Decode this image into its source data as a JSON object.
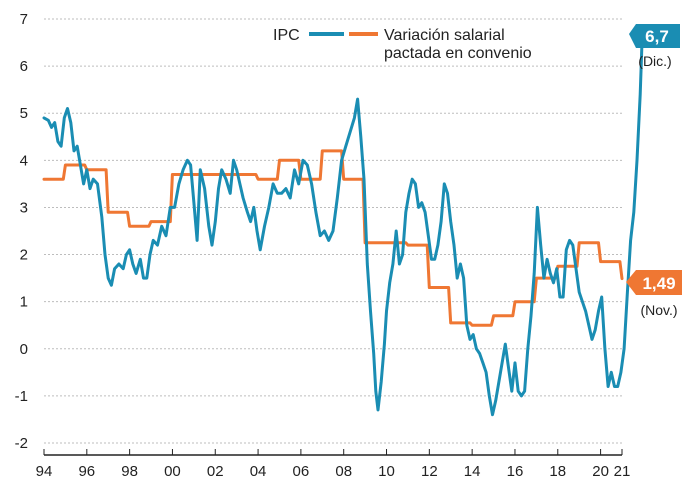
{
  "chart_data": {
    "type": "line",
    "title": "",
    "xlabel": "",
    "ylabel": "",
    "xlim": [
      1994,
      2021
    ],
    "ylim": [
      -2,
      7
    ],
    "grid": true,
    "x_ticks": [
      {
        "value": 1994,
        "label": "94"
      },
      {
        "value": 1996,
        "label": "96"
      },
      {
        "value": 1998,
        "label": "98"
      },
      {
        "value": 2000,
        "label": "00"
      },
      {
        "value": 2002,
        "label": "02"
      },
      {
        "value": 2004,
        "label": "04"
      },
      {
        "value": 2006,
        "label": "06"
      },
      {
        "value": 2008,
        "label": "08"
      },
      {
        "value": 2010,
        "label": "10"
      },
      {
        "value": 2012,
        "label": "12"
      },
      {
        "value": 2014,
        "label": "14"
      },
      {
        "value": 2016,
        "label": "16"
      },
      {
        "value": 2018,
        "label": "18"
      },
      {
        "value": 2020,
        "label": "20"
      },
      {
        "value": 2021,
        "label": "21"
      }
    ],
    "y_ticks": [
      {
        "value": -2,
        "label": "-2"
      },
      {
        "value": -1,
        "label": "-1"
      },
      {
        "value": 0,
        "label": "0"
      },
      {
        "value": 1,
        "label": "1"
      },
      {
        "value": 2,
        "label": "2"
      },
      {
        "value": 3,
        "label": "3"
      },
      {
        "value": 4,
        "label": "4"
      },
      {
        "value": 5,
        "label": "5"
      },
      {
        "value": 6,
        "label": "6"
      },
      {
        "value": 7,
        "label": "7"
      }
    ],
    "legend": {
      "position": "top-right"
    },
    "series": [
      {
        "name": "IPC",
        "color": "#1a8db3",
        "points": [
          [
            1994.0,
            4.9
          ],
          [
            1994.2,
            4.85
          ],
          [
            1994.35,
            4.7
          ],
          [
            1994.5,
            4.8
          ],
          [
            1994.65,
            4.4
          ],
          [
            1994.8,
            4.3
          ],
          [
            1994.95,
            4.9
          ],
          [
            1995.1,
            5.1
          ],
          [
            1995.25,
            4.8
          ],
          [
            1995.4,
            4.2
          ],
          [
            1995.55,
            4.3
          ],
          [
            1995.7,
            3.9
          ],
          [
            1995.85,
            3.5
          ],
          [
            1996.0,
            3.8
          ],
          [
            1996.15,
            3.4
          ],
          [
            1996.3,
            3.6
          ],
          [
            1996.5,
            3.5
          ],
          [
            1996.7,
            2.8
          ],
          [
            1996.85,
            2.0
          ],
          [
            1997.0,
            1.5
          ],
          [
            1997.15,
            1.35
          ],
          [
            1997.3,
            1.7
          ],
          [
            1997.5,
            1.8
          ],
          [
            1997.7,
            1.7
          ],
          [
            1997.85,
            2.0
          ],
          [
            1998.0,
            2.1
          ],
          [
            1998.15,
            1.8
          ],
          [
            1998.3,
            1.6
          ],
          [
            1998.5,
            1.9
          ],
          [
            1998.65,
            1.5
          ],
          [
            1998.8,
            1.5
          ],
          [
            1998.95,
            2.0
          ],
          [
            1999.1,
            2.3
          ],
          [
            1999.3,
            2.2
          ],
          [
            1999.5,
            2.6
          ],
          [
            1999.7,
            2.4
          ],
          [
            1999.9,
            3.0
          ],
          [
            2000.1,
            3.0
          ],
          [
            2000.3,
            3.5
          ],
          [
            2000.5,
            3.8
          ],
          [
            2000.7,
            4.0
          ],
          [
            2000.85,
            3.9
          ],
          [
            2001.0,
            3.1
          ],
          [
            2001.15,
            2.3
          ],
          [
            2001.3,
            3.8
          ],
          [
            2001.5,
            3.4
          ],
          [
            2001.7,
            2.6
          ],
          [
            2001.85,
            2.2
          ],
          [
            2002.0,
            2.7
          ],
          [
            2002.15,
            3.4
          ],
          [
            2002.3,
            3.8
          ],
          [
            2002.5,
            3.6
          ],
          [
            2002.7,
            3.3
          ],
          [
            2002.85,
            4.0
          ],
          [
            2003.0,
            3.8
          ],
          [
            2003.15,
            3.5
          ],
          [
            2003.3,
            3.2
          ],
          [
            2003.5,
            2.9
          ],
          [
            2003.65,
            2.7
          ],
          [
            2003.8,
            3.0
          ],
          [
            2003.95,
            2.5
          ],
          [
            2004.1,
            2.1
          ],
          [
            2004.3,
            2.6
          ],
          [
            2004.5,
            3.0
          ],
          [
            2004.7,
            3.5
          ],
          [
            2004.9,
            3.3
          ],
          [
            2005.1,
            3.3
          ],
          [
            2005.3,
            3.4
          ],
          [
            2005.5,
            3.2
          ],
          [
            2005.7,
            3.8
          ],
          [
            2005.9,
            3.5
          ],
          [
            2006.1,
            4.0
          ],
          [
            2006.3,
            3.9
          ],
          [
            2006.5,
            3.5
          ],
          [
            2006.7,
            2.9
          ],
          [
            2006.9,
            2.4
          ],
          [
            2007.1,
            2.5
          ],
          [
            2007.3,
            2.3
          ],
          [
            2007.5,
            2.5
          ],
          [
            2007.7,
            3.2
          ],
          [
            2007.9,
            4.0
          ],
          [
            2008.1,
            4.3
          ],
          [
            2008.3,
            4.6
          ],
          [
            2008.5,
            4.9
          ],
          [
            2008.65,
            5.3
          ],
          [
            2008.8,
            4.5
          ],
          [
            2008.95,
            3.6
          ],
          [
            2009.1,
            1.8
          ],
          [
            2009.25,
            0.8
          ],
          [
            2009.4,
            -0.1
          ],
          [
            2009.5,
            -0.9
          ],
          [
            2009.6,
            -1.3
          ],
          [
            2009.75,
            -0.7
          ],
          [
            2009.9,
            0.1
          ],
          [
            2010.0,
            0.8
          ],
          [
            2010.15,
            1.4
          ],
          [
            2010.3,
            1.8
          ],
          [
            2010.45,
            2.5
          ],
          [
            2010.6,
            1.8
          ],
          [
            2010.75,
            2.0
          ],
          [
            2010.9,
            2.9
          ],
          [
            2011.05,
            3.3
          ],
          [
            2011.2,
            3.6
          ],
          [
            2011.35,
            3.5
          ],
          [
            2011.5,
            3.0
          ],
          [
            2011.65,
            3.1
          ],
          [
            2011.8,
            2.9
          ],
          [
            2011.95,
            2.4
          ],
          [
            2012.1,
            1.9
          ],
          [
            2012.25,
            1.9
          ],
          [
            2012.4,
            2.2
          ],
          [
            2012.55,
            2.7
          ],
          [
            2012.7,
            3.5
          ],
          [
            2012.85,
            3.3
          ],
          [
            2013.0,
            2.7
          ],
          [
            2013.15,
            2.2
          ],
          [
            2013.3,
            1.5
          ],
          [
            2013.45,
            1.8
          ],
          [
            2013.6,
            1.5
          ],
          [
            2013.75,
            0.5
          ],
          [
            2013.9,
            0.2
          ],
          [
            2014.05,
            0.3
          ],
          [
            2014.2,
            0.0
          ],
          [
            2014.35,
            -0.1
          ],
          [
            2014.5,
            -0.3
          ],
          [
            2014.65,
            -0.5
          ],
          [
            2014.8,
            -1.0
          ],
          [
            2014.95,
            -1.4
          ],
          [
            2015.1,
            -1.1
          ],
          [
            2015.25,
            -0.7
          ],
          [
            2015.4,
            -0.3
          ],
          [
            2015.55,
            0.1
          ],
          [
            2015.7,
            -0.4
          ],
          [
            2015.85,
            -0.9
          ],
          [
            2016.0,
            -0.3
          ],
          [
            2016.15,
            -0.9
          ],
          [
            2016.3,
            -1.0
          ],
          [
            2016.45,
            -0.9
          ],
          [
            2016.6,
            0.0
          ],
          [
            2016.75,
            0.7
          ],
          [
            2016.9,
            1.6
          ],
          [
            2017.05,
            3.0
          ],
          [
            2017.2,
            2.2
          ],
          [
            2017.35,
            1.5
          ],
          [
            2017.5,
            1.9
          ],
          [
            2017.65,
            1.6
          ],
          [
            2017.8,
            1.4
          ],
          [
            2017.95,
            1.7
          ],
          [
            2018.1,
            1.1
          ],
          [
            2018.25,
            1.1
          ],
          [
            2018.4,
            2.1
          ],
          [
            2018.55,
            2.3
          ],
          [
            2018.7,
            2.2
          ],
          [
            2018.85,
            1.7
          ],
          [
            2019.0,
            1.2
          ],
          [
            2019.15,
            1.0
          ],
          [
            2019.3,
            0.8
          ],
          [
            2019.45,
            0.5
          ],
          [
            2019.6,
            0.2
          ],
          [
            2019.75,
            0.4
          ],
          [
            2019.9,
            0.8
          ],
          [
            2020.05,
            1.1
          ],
          [
            2020.2,
            0.0
          ],
          [
            2020.35,
            -0.8
          ],
          [
            2020.5,
            -0.5
          ],
          [
            2020.65,
            -0.8
          ],
          [
            2020.8,
            -0.8
          ],
          [
            2020.95,
            -0.5
          ],
          [
            2021.1,
            0.0
          ],
          [
            2021.25,
            1.2
          ],
          [
            2021.4,
            2.3
          ],
          [
            2021.55,
            2.9
          ],
          [
            2021.7,
            4.0
          ],
          [
            2021.85,
            5.4
          ],
          [
            2021.95,
            6.7
          ]
        ]
      },
      {
        "name": "Variación salarial pactada en convenio",
        "color": "#ef7733",
        "points": [
          [
            1994.0,
            3.6
          ],
          [
            1994.9,
            3.6
          ],
          [
            1995.0,
            3.9
          ],
          [
            1995.9,
            3.9
          ],
          [
            1996.0,
            3.8
          ],
          [
            1996.9,
            3.8
          ],
          [
            1997.0,
            2.9
          ],
          [
            1997.9,
            2.9
          ],
          [
            1998.0,
            2.6
          ],
          [
            1998.9,
            2.6
          ],
          [
            1999.0,
            2.7
          ],
          [
            1999.9,
            2.7
          ],
          [
            2000.0,
            3.7
          ],
          [
            2000.9,
            3.7
          ],
          [
            2001.0,
            3.7
          ],
          [
            2002.9,
            3.7
          ],
          [
            2003.0,
            3.7
          ],
          [
            2003.9,
            3.7
          ],
          [
            2004.0,
            3.6
          ],
          [
            2004.9,
            3.6
          ],
          [
            2005.0,
            4.0
          ],
          [
            2005.9,
            4.0
          ],
          [
            2006.0,
            3.6
          ],
          [
            2006.9,
            3.6
          ],
          [
            2007.0,
            4.2
          ],
          [
            2007.9,
            4.2
          ],
          [
            2008.0,
            3.6
          ],
          [
            2008.9,
            3.6
          ],
          [
            2009.0,
            2.25
          ],
          [
            2010.9,
            2.25
          ],
          [
            2011.0,
            2.2
          ],
          [
            2011.9,
            2.2
          ],
          [
            2012.0,
            1.3
          ],
          [
            2012.9,
            1.3
          ],
          [
            2013.0,
            0.55
          ],
          [
            2013.9,
            0.55
          ],
          [
            2014.0,
            0.5
          ],
          [
            2014.9,
            0.5
          ],
          [
            2015.0,
            0.7
          ],
          [
            2015.9,
            0.7
          ],
          [
            2016.0,
            1.0
          ],
          [
            2016.9,
            1.0
          ],
          [
            2017.0,
            1.5
          ],
          [
            2017.9,
            1.5
          ],
          [
            2018.0,
            1.75
          ],
          [
            2018.9,
            1.75
          ],
          [
            2019.0,
            2.25
          ],
          [
            2019.9,
            2.25
          ],
          [
            2020.0,
            1.85
          ],
          [
            2020.9,
            1.85
          ],
          [
            2021.0,
            1.49
          ]
        ]
      }
    ],
    "annotations": [
      {
        "series": "IPC",
        "value_label": "6,7",
        "note": "(Dic.)"
      },
      {
        "series": "Variación salarial pactada en convenio",
        "value_label": "1,49",
        "note": "(Nov.)"
      }
    ]
  },
  "legend": {
    "ipc_label": "IPC",
    "salarial_label_line1": "Variación salarial",
    "salarial_label_line2": "pactada en convenio"
  }
}
